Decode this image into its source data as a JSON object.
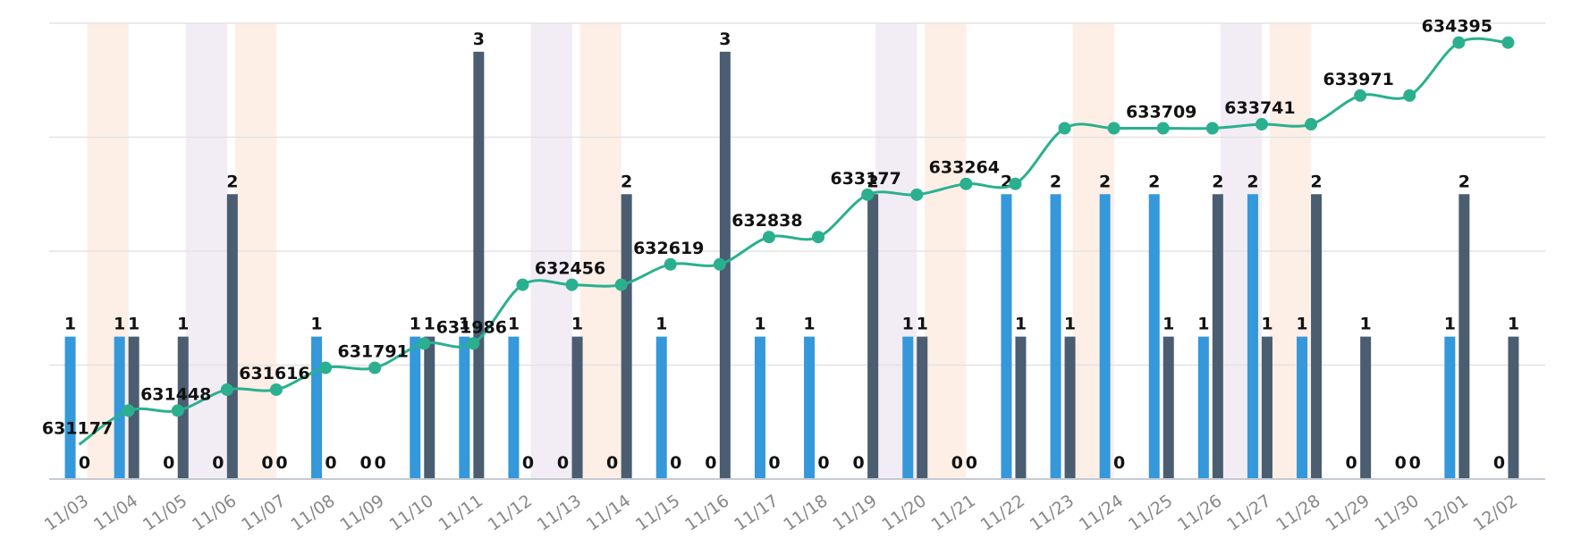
{
  "colors": {
    "series_a": "#3498db",
    "series_b": "#4b5d70",
    "line": "#2ab08e",
    "band_orange": "#fdeee6",
    "band_purple": "#f2ecf5"
  },
  "chart_data": {
    "type": "bar",
    "title": "",
    "xlabel": "",
    "ylabel": "",
    "grid": true,
    "ylim": [
      0,
      3.2
    ],
    "categories": [
      "11/03",
      "11/04",
      "11/05",
      "11/06",
      "11/07",
      "11/08",
      "11/09",
      "11/10",
      "11/11",
      "11/12",
      "11/13",
      "11/14",
      "11/15",
      "11/16",
      "11/17",
      "11/18",
      "11/19",
      "11/20",
      "11/21",
      "11/22",
      "11/23",
      "11/24",
      "11/25",
      "11/26",
      "11/27",
      "11/28",
      "11/29",
      "11/30",
      "12/01",
      "12/02"
    ],
    "series": [
      {
        "name": "series_a",
        "kind": "bar",
        "values": [
          1,
          1,
          0,
          0,
          0,
          1,
          0,
          1,
          1,
          1,
          0,
          0,
          1,
          0,
          1,
          1,
          0,
          1,
          0,
          2,
          2,
          2,
          2,
          1,
          2,
          1,
          0,
          0,
          1,
          0
        ]
      },
      {
        "name": "series_b",
        "kind": "bar",
        "values": [
          0,
          1,
          1,
          2,
          0,
          0,
          0,
          1,
          3,
          0,
          1,
          2,
          0,
          3,
          0,
          0,
          2,
          1,
          0,
          1,
          1,
          0,
          1,
          2,
          1,
          2,
          1,
          0,
          2,
          1
        ]
      },
      {
        "name": "cumulative_total",
        "kind": "line",
        "axis": "secondary",
        "ylim": [
          630900,
          634550
        ],
        "values": [
          631177,
          631448,
          631448,
          631616,
          631616,
          631791,
          631791,
          631986,
          631986,
          632456,
          632456,
          632456,
          632619,
          632619,
          632838,
          632838,
          633177,
          633177,
          633264,
          633264,
          633709,
          633709,
          633709,
          633709,
          633741,
          633741,
          633971,
          633971,
          634395,
          634395
        ]
      }
    ],
    "line_labels": [
      {
        "i": 0,
        "text": "631177"
      },
      {
        "i": 2,
        "text": "631448"
      },
      {
        "i": 4,
        "text": "631616"
      },
      {
        "i": 6,
        "text": "631791"
      },
      {
        "i": 8,
        "text": "631986"
      },
      {
        "i": 10,
        "text": "632456"
      },
      {
        "i": 12,
        "text": "632619"
      },
      {
        "i": 14,
        "text": "632838"
      },
      {
        "i": 16,
        "text": "633177"
      },
      {
        "i": 18,
        "text": "633264"
      },
      {
        "i": 22,
        "text": "633709"
      },
      {
        "i": 24,
        "text": "633741"
      },
      {
        "i": 26,
        "text": "633971"
      },
      {
        "i": 28,
        "text": "634395"
      }
    ],
    "weekend_bands": [
      {
        "from": "11/03",
        "to": "11/03",
        "color": "orange"
      },
      {
        "from": "11/05",
        "to": "11/05",
        "color": "purple"
      },
      {
        "from": "11/06",
        "to": "11/06",
        "color": "orange"
      },
      {
        "from": "11/12",
        "to": "11/12",
        "color": "purple"
      },
      {
        "from": "11/13",
        "to": "11/13",
        "color": "orange"
      },
      {
        "from": "11/19",
        "to": "11/19",
        "color": "purple"
      },
      {
        "from": "11/20",
        "to": "11/20",
        "color": "orange"
      },
      {
        "from": "11/23",
        "to": "11/23",
        "color": "orange"
      },
      {
        "from": "11/26",
        "to": "11/26",
        "color": "purple"
      },
      {
        "from": "11/27",
        "to": "11/27",
        "color": "orange"
      }
    ]
  }
}
